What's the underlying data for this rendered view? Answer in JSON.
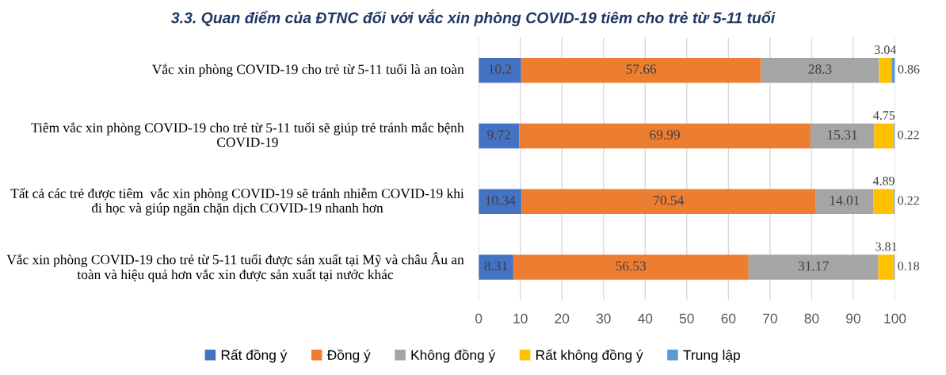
{
  "chart_data": {
    "type": "bar",
    "orientation": "horizontal",
    "stacked": true,
    "title": "3.3. Quan điểm của ĐTNC đối với vắc xin phòng COVID-19 tiêm cho trẻ từ 5-11 tuổi",
    "categories": [
      "Vắc xin phòng COVID-19 cho trẻ từ 5-11 tuổi là an toàn",
      "Tiêm vắc xin phòng COVID-19 cho trẻ từ 5-11 tuổi sẽ giúp trẻ tránh mắc bệnh COVID-19",
      "Tất cả các trẻ được tiêm  vắc xin phòng COVID-19 sẽ tránh nhiễm COVID-19 khi đi học và giúp ngăn chặn dịch COVID-19 nhanh hơn",
      "Vắc xin phòng COVID-19 cho trẻ từ 5-11 tuổi được sản xuất tại Mỹ và châu Âu an toàn và hiệu quả hơn vắc xin được sản xuất tại nước khác"
    ],
    "series": [
      {
        "name": "Rất đồng ý",
        "color": "#4472c4",
        "values": [
          10.2,
          9.72,
          10.34,
          8.31
        ]
      },
      {
        "name": "Đồng ý",
        "color": "#ed7d31",
        "values": [
          57.66,
          69.99,
          70.54,
          56.53
        ]
      },
      {
        "name": "Không đồng ý",
        "color": "#a5a5a5",
        "values": [
          28.3,
          15.31,
          14.01,
          31.17
        ]
      },
      {
        "name": "Rất không đồng ý",
        "color": "#ffc000",
        "values": [
          3.04,
          4.75,
          4.89,
          3.81
        ]
      },
      {
        "name": "Trung lập",
        "color": "#5b9bd5",
        "values": [
          0.86,
          0.22,
          0.22,
          0.18
        ]
      }
    ],
    "xlim": [
      0,
      100
    ],
    "xticks": [
      0,
      10,
      20,
      30,
      40,
      50,
      60,
      70,
      80,
      90,
      100
    ],
    "grid": "x",
    "legend": "bottom",
    "data_labels": true
  }
}
